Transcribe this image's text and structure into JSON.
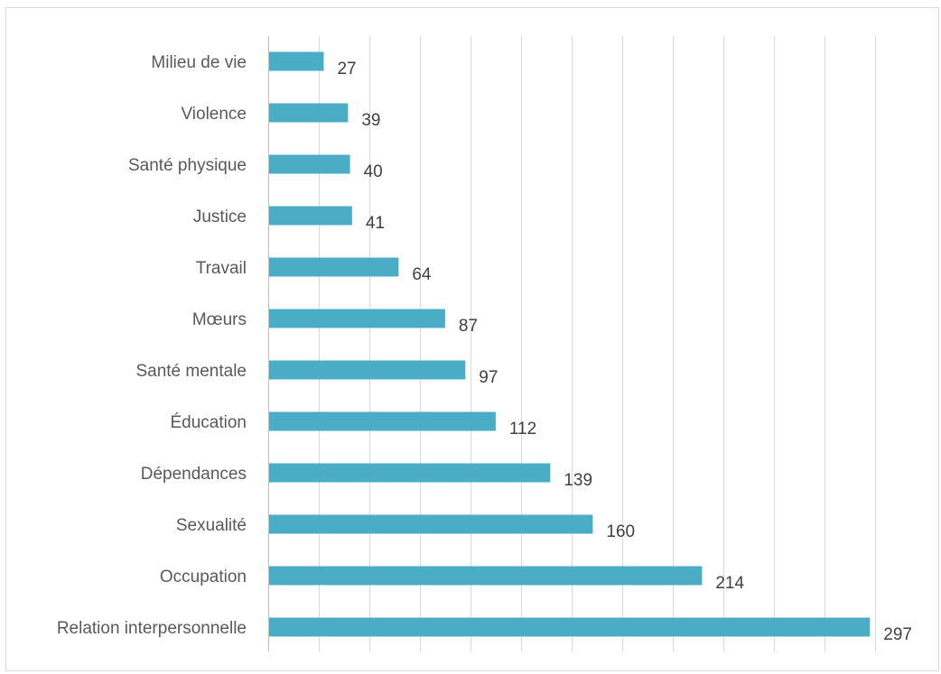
{
  "chart_data": {
    "type": "bar",
    "orientation": "horizontal",
    "title": "",
    "xlabel": "",
    "ylabel": "",
    "xlim": [
      0,
      320
    ],
    "grid": true,
    "legend": "none",
    "bar_color": "#4bacc6",
    "categories": [
      "Milieu de vie",
      "Violence",
      "Santé physique",
      "Justice",
      "Travail",
      "Mœurs",
      "Santé mentale",
      "Éducation",
      "Dépendances",
      "Sexualité",
      "Occupation",
      "Relation interpersonnelle"
    ],
    "values": [
      27,
      39,
      40,
      41,
      64,
      87,
      97,
      112,
      139,
      160,
      214,
      297
    ]
  }
}
